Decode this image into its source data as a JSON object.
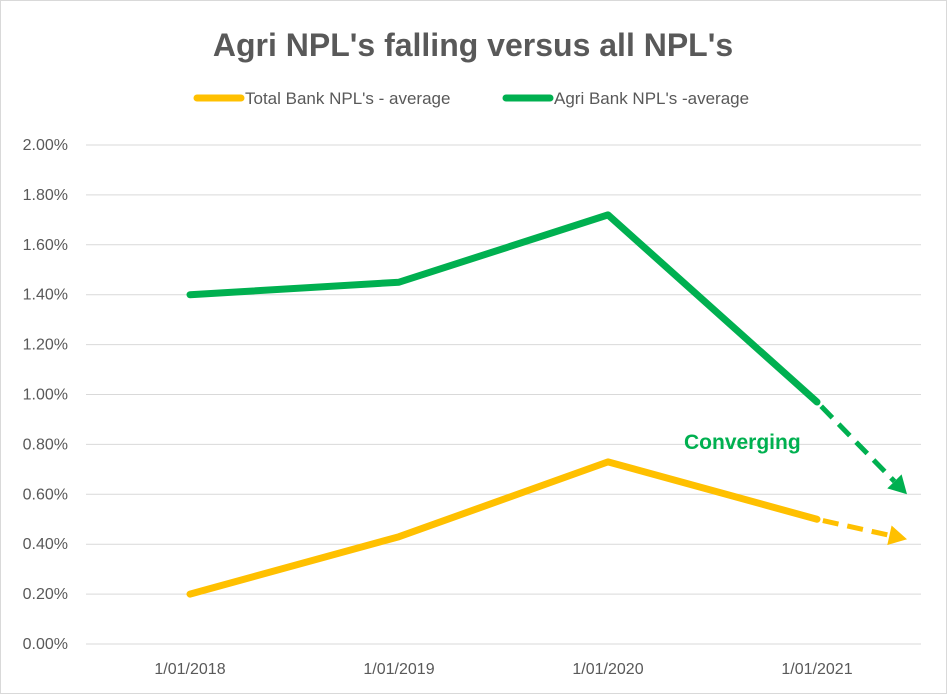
{
  "chart_data": {
    "type": "line",
    "title": "Agri NPL's falling versus all NPL's",
    "xlabel": "",
    "ylabel": "",
    "categories": [
      "1/01/2018",
      "1/01/2019",
      "1/01/2020",
      "1/01/2021"
    ],
    "y_ticks": [
      "0.00%",
      "0.20%",
      "0.40%",
      "0.60%",
      "0.80%",
      "1.00%",
      "1.20%",
      "1.40%",
      "1.60%",
      "1.80%",
      "2.00%"
    ],
    "ylim": [
      0,
      2.0
    ],
    "y_unit": "%",
    "grid": true,
    "legend_position": "top",
    "series": [
      {
        "name": "Total Bank NPL's - average",
        "color": "#ffc000",
        "x": [
          "1/01/2018",
          "1/01/2019",
          "1/01/2020",
          "1/01/2021"
        ],
        "values": [
          0.2,
          0.43,
          0.73,
          0.5
        ],
        "projection": {
          "to_value": 0.42,
          "style": "dashed-arrow"
        }
      },
      {
        "name": "Agri Bank NPL's -average",
        "color": "#00b050",
        "x": [
          "1/01/2018",
          "1/01/2019",
          "1/01/2020",
          "1/01/2021"
        ],
        "values": [
          1.4,
          1.45,
          1.72,
          0.97
        ],
        "projection": {
          "to_value": 0.6,
          "style": "dashed-arrow"
        }
      }
    ],
    "annotations": [
      {
        "text": "Converging",
        "color": "#00b050"
      }
    ],
    "gridline_color": "#d9d9d9",
    "text_color": "#595959"
  }
}
